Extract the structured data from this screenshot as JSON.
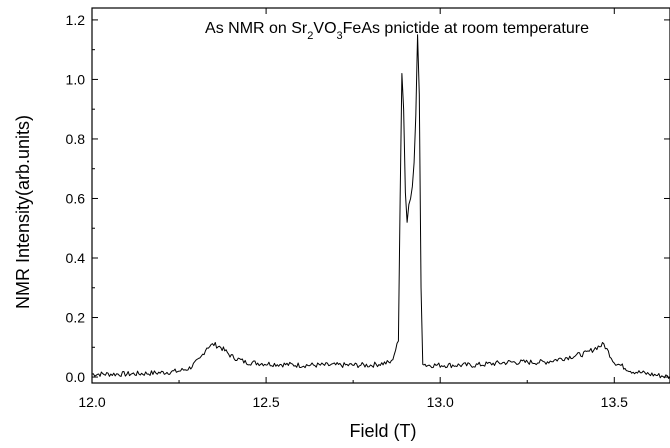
{
  "chart_data": {
    "type": "line",
    "title": {
      "prefix": "As NMR on Sr",
      "sub1": "2",
      "mid": "VO",
      "sub2": "3",
      "suffix": "FeAs pnictide at room temperature"
    },
    "xlabel": "Field (T)",
    "ylabel": "NMR Intensity(arb.units)",
    "xlim": [
      12.0,
      13.66
    ],
    "ylim": [
      -0.02,
      1.24
    ],
    "xticks": [
      "12.0",
      "12.5",
      "13.0",
      "13.5"
    ],
    "yticks": [
      "0.0",
      "0.2",
      "0.4",
      "0.6",
      "0.8",
      "1.0",
      "1.2"
    ],
    "grid": false,
    "line_color": "#000000",
    "series": [
      {
        "x": [
          12.0,
          12.05,
          12.1,
          12.15,
          12.2,
          12.25,
          12.28,
          12.31,
          12.33,
          12.35,
          12.37,
          12.4,
          12.44,
          12.5,
          12.6,
          12.7,
          12.8,
          12.86,
          12.88,
          12.885,
          12.89,
          12.895,
          12.9,
          12.905,
          12.91,
          12.915,
          12.92,
          12.925,
          12.93,
          12.935,
          12.94,
          12.945,
          12.95,
          12.96,
          13.0,
          13.1,
          13.2,
          13.3,
          13.38,
          13.42,
          13.45,
          13.47,
          13.5,
          13.55,
          13.6,
          13.66
        ],
        "y": [
          0.01,
          0.01,
          0.01,
          0.012,
          0.015,
          0.02,
          0.03,
          0.06,
          0.1,
          0.11,
          0.1,
          0.07,
          0.05,
          0.045,
          0.04,
          0.04,
          0.04,
          0.05,
          0.12,
          0.6,
          1.02,
          0.9,
          0.62,
          0.52,
          0.58,
          0.6,
          0.64,
          0.72,
          0.88,
          1.15,
          0.95,
          0.3,
          0.05,
          0.04,
          0.04,
          0.04,
          0.05,
          0.05,
          0.07,
          0.08,
          0.1,
          0.11,
          0.05,
          0.02,
          0.01,
          0.0
        ]
      }
    ]
  }
}
